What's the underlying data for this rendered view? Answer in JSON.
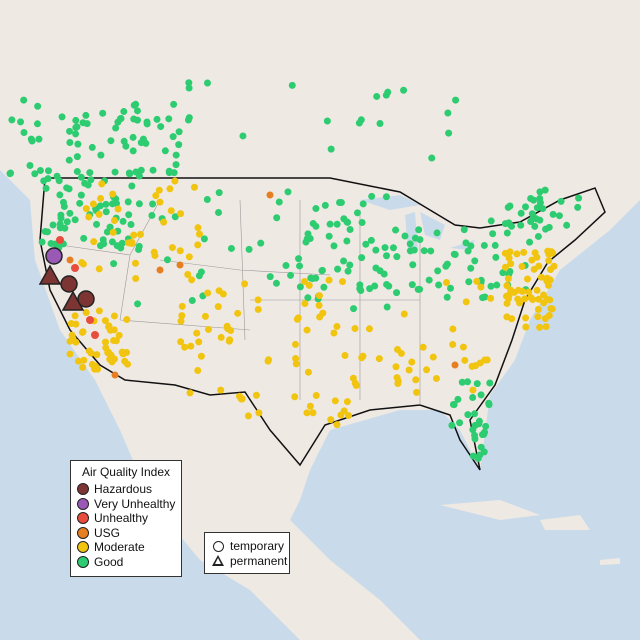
{
  "legend": {
    "title": "Air Quality Index",
    "categories": [
      {
        "label": "Hazardous",
        "color": "#7d3533"
      },
      {
        "label": "Very Unhealthy",
        "color": "#9b59b6"
      },
      {
        "label": "Unhealthy",
        "color": "#e74c3c"
      },
      {
        "label": "USG",
        "color": "#e67e22"
      },
      {
        "label": "Moderate",
        "color": "#f1c40f"
      },
      {
        "label": "Good",
        "color": "#2ecc71"
      }
    ],
    "shapes": [
      {
        "label": "temporary",
        "icon": "circle-icon"
      },
      {
        "label": "permanent",
        "icon": "triangle-icon"
      }
    ]
  },
  "map": {
    "land_color": "#efe9e4",
    "water_color": "#c9dbea",
    "border_color": "#111111"
  }
}
